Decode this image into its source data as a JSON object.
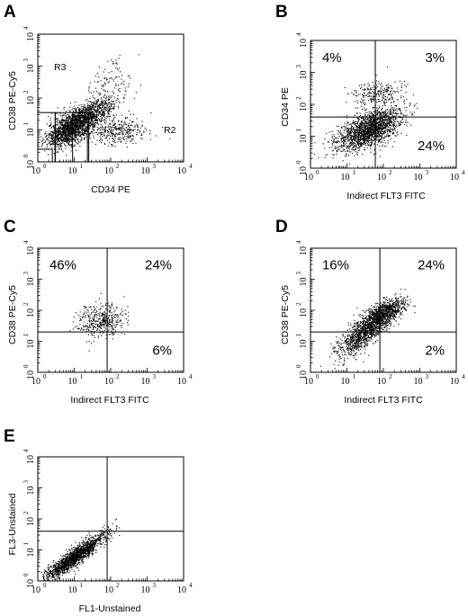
{
  "chart_data": [
    {
      "type": "scatter",
      "panel": "A",
      "xlabel": "CD34 PE",
      "ylabel": "CD38 PE-Cy5",
      "xscale": "log",
      "yscale": "log",
      "xlim": [
        1,
        10000
      ],
      "ylim": [
        1,
        10000
      ],
      "tick_labels": [
        "10",
        "10",
        "10",
        "10",
        "10"
      ],
      "tick_exponents": [
        "0",
        "1",
        "2",
        "3",
        "4"
      ],
      "regions": [
        {
          "name": "R3",
          "rect_x": [
            1,
            3
          ],
          "rect_y": [
            1,
            35
          ]
        },
        {
          "name": "R2",
          "rect_x": [
            3,
            25
          ],
          "rect_y": [
            1,
            35
          ]
        },
        {
          "name": "",
          "rect_x": [
            1,
            2.5
          ],
          "rect_y": [
            1,
            2.5
          ]
        },
        {
          "name": "",
          "rect_x": [
            9,
            23
          ],
          "rect_y": [
            1,
            35
          ]
        }
      ],
      "populations": [
        {
          "x_center_log": 0.9,
          "y_center_log": 1.05,
          "sx": 0.32,
          "sy": 0.3,
          "rho": 0.55,
          "n": 1400
        },
        {
          "x_center_log": 1.5,
          "y_center_log": 1.5,
          "sx": 0.35,
          "sy": 0.3,
          "rho": 0.65,
          "n": 700
        },
        {
          "x_center_log": 2.2,
          "y_center_log": 0.95,
          "sx": 0.45,
          "sy": 0.22,
          "rho": 0.1,
          "n": 350
        },
        {
          "x_center_log": 1.9,
          "y_center_log": 2.5,
          "sx": 0.35,
          "sy": 0.35,
          "rho": 0.3,
          "n": 90
        }
      ]
    },
    {
      "type": "scatter",
      "panel": "B",
      "xlabel": "Indirect FLT3 FITC",
      "ylabel": "CD34 PE",
      "xscale": "log",
      "yscale": "log",
      "xlim": [
        1,
        10000
      ],
      "ylim": [
        1,
        10000
      ],
      "tick_labels": [
        "10",
        "10",
        "10",
        "10",
        "10"
      ],
      "tick_exponents": [
        "0",
        "1",
        "2",
        "3",
        "4"
      ],
      "quadrant_x": 60,
      "quadrant_y": 40,
      "quadrant_percent": {
        "upper_left": "4%",
        "upper_right": "3%",
        "lower_right": "24%"
      },
      "populations": [
        {
          "x_center_log": 1.6,
          "y_center_log": 1.2,
          "sx": 0.45,
          "sy": 0.33,
          "rho": 0.6,
          "n": 1800
        },
        {
          "x_center_log": 1.85,
          "y_center_log": 2.35,
          "sx": 0.35,
          "sy": 0.2,
          "rho": 0.2,
          "n": 250
        }
      ]
    },
    {
      "type": "scatter",
      "panel": "C",
      "xlabel": "Indirect FLT3 FITC",
      "ylabel": "CD38 PE-Cy5",
      "xscale": "log",
      "yscale": "log",
      "xlim": [
        1,
        10000
      ],
      "ylim": [
        1,
        10000
      ],
      "tick_labels": [
        "10",
        "10",
        "10",
        "10",
        "10"
      ],
      "tick_exponents": [
        "0",
        "1",
        "2",
        "3",
        "4"
      ],
      "quadrant_x": 80,
      "quadrant_y": 20,
      "quadrant_percent": {
        "upper_left": "46%",
        "upper_right": "24%",
        "lower_right": "6%"
      },
      "populations": [
        {
          "x_center_log": 1.75,
          "y_center_log": 1.65,
          "sx": 0.33,
          "sy": 0.28,
          "rho": 0.15,
          "n": 420
        }
      ]
    },
    {
      "type": "scatter",
      "panel": "D",
      "xlabel": "Indirect FLT3 FITC",
      "ylabel": "CD38 PE-Cy5",
      "xscale": "log",
      "yscale": "log",
      "xlim": [
        1,
        10000
      ],
      "ylim": [
        1,
        10000
      ],
      "tick_labels": [
        "10",
        "10",
        "10",
        "10",
        "10"
      ],
      "tick_exponents": [
        "0",
        "1",
        "2",
        "3",
        "4"
      ],
      "quadrant_x": 80,
      "quadrant_y": 20,
      "quadrant_percent": {
        "upper_left": "16%",
        "upper_right": "24%",
        "lower_right": "2%"
      },
      "populations": [
        {
          "x_center_log": 1.55,
          "y_center_log": 1.35,
          "sx": 0.4,
          "sy": 0.42,
          "rho": 0.8,
          "n": 1300
        },
        {
          "x_center_log": 2.05,
          "y_center_log": 1.95,
          "sx": 0.28,
          "sy": 0.22,
          "rho": 0.6,
          "n": 600
        }
      ]
    },
    {
      "type": "scatter",
      "panel": "E",
      "xlabel": "FL1-Unstained",
      "ylabel": "FL3-Unstained",
      "xscale": "log",
      "yscale": "log",
      "xlim": [
        1,
        10000
      ],
      "ylim": [
        1,
        10000
      ],
      "tick_labels": [
        "10",
        "10",
        "10",
        "10",
        "10"
      ],
      "tick_exponents": [
        "0",
        "1",
        "2",
        "3",
        "4"
      ],
      "quadrant_x": 80,
      "quadrant_y": 40,
      "populations": [
        {
          "x_center_log": 1.0,
          "y_center_log": 0.75,
          "sx": 0.42,
          "sy": 0.38,
          "rho": 0.92,
          "n": 1600
        }
      ]
    }
  ],
  "colors": {
    "ink": "#000000",
    "background": "#ffffff"
  }
}
